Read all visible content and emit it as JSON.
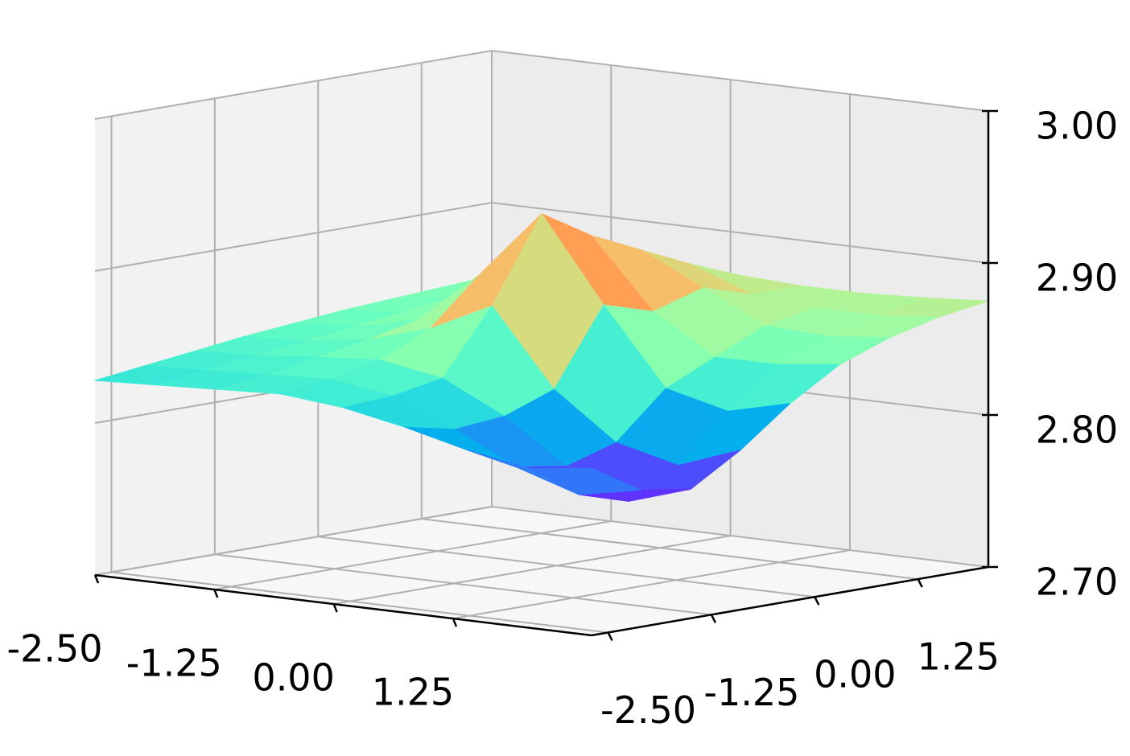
{
  "chart_data": {
    "type": "surface3d",
    "colormap": "rainbow",
    "x": [
      -2.5,
      -1.85,
      -1.2,
      -0.55,
      0.1,
      0.75,
      1.4,
      2.05,
      2.7
    ],
    "y": [
      -2.7,
      -2.1,
      -1.5,
      -0.9,
      -0.3,
      0.3,
      0.9,
      1.5,
      2.1
    ],
    "z": [
      [
        2.828,
        2.83,
        2.832,
        2.834,
        2.83,
        2.822,
        2.812,
        2.805,
        2.81
      ],
      [
        2.832,
        2.834,
        2.836,
        2.838,
        2.832,
        2.815,
        2.795,
        2.782,
        2.79
      ],
      [
        2.836,
        2.838,
        2.842,
        2.845,
        2.838,
        2.818,
        2.79,
        2.772,
        2.785
      ],
      [
        2.84,
        2.842,
        2.848,
        2.86,
        2.88,
        2.83,
        2.8,
        2.79,
        2.805
      ],
      [
        2.843,
        2.846,
        2.855,
        2.89,
        2.935,
        2.88,
        2.83,
        2.82,
        2.83
      ],
      [
        2.846,
        2.85,
        2.865,
        2.9,
        2.915,
        2.87,
        2.845,
        2.845,
        2.85
      ],
      [
        2.848,
        2.854,
        2.875,
        2.905,
        2.9,
        2.88,
        2.86,
        2.858,
        2.862
      ],
      [
        2.85,
        2.856,
        2.868,
        2.885,
        2.885,
        2.87,
        2.866,
        2.866,
        2.87
      ],
      [
        2.852,
        2.856,
        2.862,
        2.87,
        2.872,
        2.87,
        2.87,
        2.872,
        2.875
      ]
    ],
    "xlim": [
      -2.5,
      2.7
    ],
    "ylim": [
      -2.7,
      2.1
    ],
    "zlim": [
      2.7,
      3.0
    ],
    "xticks": [
      {
        "value": -2.5,
        "label": "-2.50"
      },
      {
        "value": -1.25,
        "label": "-1.25"
      },
      {
        "value": 0,
        "label": "0.00"
      },
      {
        "value": 1.25,
        "label": "1.25"
      }
    ],
    "yticks": [
      {
        "value": -2.5,
        "label": "-2.50"
      },
      {
        "value": -1.25,
        "label": "-1.25"
      },
      {
        "value": 0,
        "label": "0.00"
      },
      {
        "value": 1.25,
        "label": "1.25"
      }
    ],
    "zticks": [
      {
        "value": 2.7,
        "label": "2.70"
      },
      {
        "value": 2.8,
        "label": "2.80"
      },
      {
        "value": 2.9,
        "label": "2.90"
      },
      {
        "value": 3.0,
        "label": "3.00"
      }
    ],
    "grid": true
  }
}
